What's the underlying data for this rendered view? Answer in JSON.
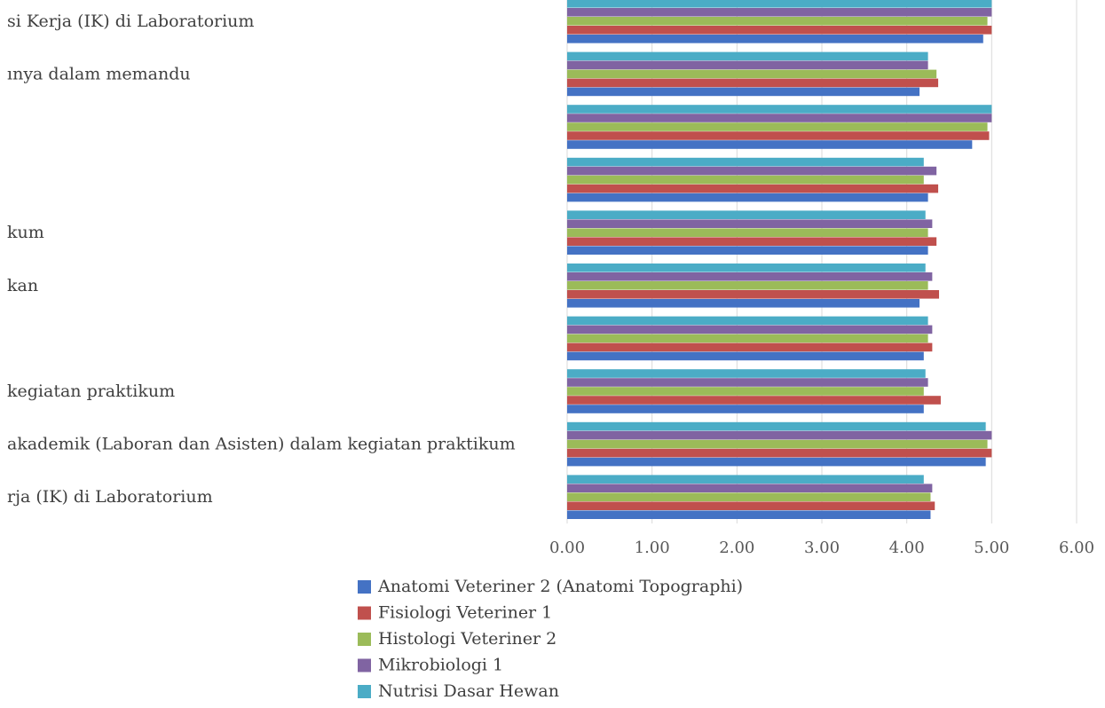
{
  "chart_data": {
    "type": "bar",
    "orientation": "horizontal",
    "categories": [
      "si Kerja (IK) di Laboratorium",
      "ınya dalam memandu",
      "",
      "",
      "kum",
      "kan",
      "",
      "kegiatan praktikum",
      "akademik (Laboran dan Asisten) dalam kegiatan praktikum",
      "rja (IK) di Laboratorium"
    ],
    "series": [
      {
        "name": "Anatomi Veteriner 2 (Anatomi Topographi)",
        "color": "#4472C4",
        "values": [
          4.9,
          4.15,
          4.77,
          4.25,
          4.25,
          4.15,
          4.2,
          4.2,
          4.93,
          4.28
        ]
      },
      {
        "name": "Fisiologi Veteriner 1",
        "color": "#C0504D",
        "values": [
          5.0,
          4.37,
          4.97,
          4.37,
          4.35,
          4.38,
          4.3,
          4.4,
          5.0,
          4.33
        ]
      },
      {
        "name": "Histologi Veteriner 2",
        "color": "#9BBB59",
        "values": [
          4.95,
          4.35,
          4.95,
          4.2,
          4.25,
          4.25,
          4.25,
          4.2,
          4.95,
          4.28
        ]
      },
      {
        "name": "Mikrobiologi 1",
        "color": "#8064A2",
        "values": [
          5.0,
          4.25,
          5.0,
          4.35,
          4.3,
          4.3,
          4.3,
          4.25,
          5.0,
          4.3
        ]
      },
      {
        "name": "Nutrisi Dasar Hewan",
        "color": "#4BACC6",
        "values": [
          5.0,
          4.25,
          5.0,
          4.2,
          4.22,
          4.22,
          4.25,
          4.22,
          4.93,
          4.2
        ]
      }
    ],
    "xlim": [
      0,
      6
    ],
    "xticks": [
      "0.00",
      "1.00",
      "2.00",
      "3.00",
      "4.00",
      "5.00",
      "6.00"
    ],
    "grid": true,
    "legend_position": "bottom"
  }
}
